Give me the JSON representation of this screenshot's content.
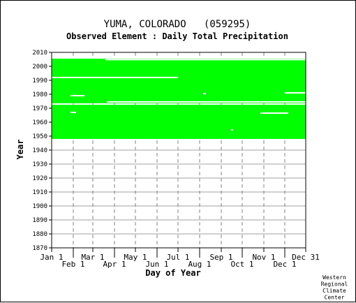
{
  "chart_data": {
    "type": "heatmap",
    "title": "YUMA, COLORADO   (059295)",
    "subtitle": "Observed Element : Daily Total Precipitation",
    "xlabel": "Day of Year",
    "ylabel": "Year",
    "ylim": [
      1870,
      2010
    ],
    "y_ticks": [
      1870,
      1880,
      1890,
      1900,
      1910,
      1920,
      1930,
      1940,
      1950,
      1960,
      1970,
      1980,
      1990,
      2000,
      2010
    ],
    "x_ticks": [
      {
        "label": "Jan 1",
        "day": 1,
        "row": "top"
      },
      {
        "label": "Feb 1",
        "day": 32,
        "row": "bottom"
      },
      {
        "label": "Mar 1",
        "day": 60,
        "row": "top"
      },
      {
        "label": "Apr 1",
        "day": 91,
        "row": "bottom"
      },
      {
        "label": "May 1",
        "day": 121,
        "row": "top"
      },
      {
        "label": "Jun 1",
        "day": 152,
        "row": "bottom"
      },
      {
        "label": "Jul 1",
        "day": 182,
        "row": "top"
      },
      {
        "label": "Aug 1",
        "day": 213,
        "row": "bottom"
      },
      {
        "label": "Sep 1",
        "day": 244,
        "row": "top"
      },
      {
        "label": "Oct 1",
        "day": 274,
        "row": "bottom"
      },
      {
        "label": "Nov 1",
        "day": 305,
        "row": "top"
      },
      {
        "label": "Dec 1",
        "day": 335,
        "row": "bottom"
      },
      {
        "label": "Dec 31",
        "day": 365,
        "row": "top"
      }
    ],
    "grid": true,
    "data_color": "#00ff00",
    "coverage_blocks": [
      {
        "start_year": 1948,
        "end_year": 1972.5,
        "start_day": 1,
        "end_day": 365
      },
      {
        "start_year": 1973.5,
        "end_year": 2005.5,
        "start_day": 1,
        "end_day": 365
      }
    ],
    "gaps": [
      {
        "year": 1992,
        "start_day": 1,
        "end_day": 182
      },
      {
        "year": 1974.5,
        "start_day": 80,
        "end_day": 365
      },
      {
        "year": 1981,
        "start_day": 335,
        "end_day": 365
      },
      {
        "year": 1979,
        "start_day": 28,
        "end_day": 48
      },
      {
        "year": 1967,
        "start_day": 28,
        "end_day": 36
      },
      {
        "year": 1966.5,
        "start_day": 300,
        "end_day": 340
      },
      {
        "year": 1954.5,
        "start_day": 258,
        "end_day": 261
      },
      {
        "year": 1980.5,
        "start_day": 218,
        "end_day": 222
      },
      {
        "year": 2004.8,
        "start_day": 78,
        "end_day": 365
      }
    ],
    "credit": [
      "Western",
      "Regional",
      "Climate",
      "Center"
    ]
  }
}
